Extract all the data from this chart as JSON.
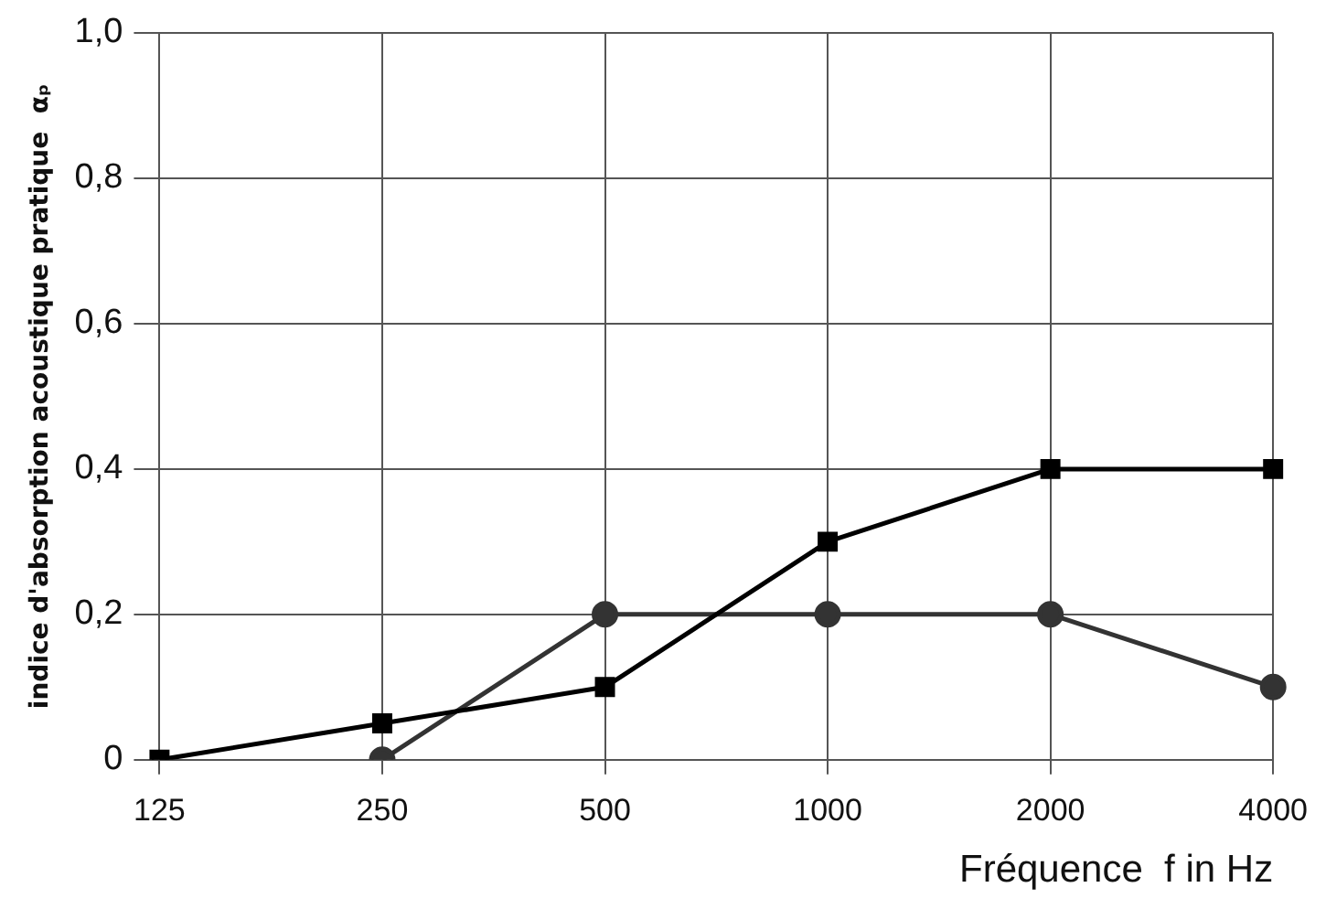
{
  "chart_data": {
    "type": "line",
    "xlabel": "Fréquence  f in Hz",
    "ylabel": "indice d'absorption acoustique pratique  αₚ",
    "categories": [
      "125",
      "250",
      "500",
      "1000",
      "2000",
      "4000"
    ],
    "series": [
      {
        "color": "#000000",
        "marker": "square",
        "values": [
          0,
          0.05,
          0.1,
          0.3,
          0.4,
          0.4
        ]
      },
      {
        "color": "#333333",
        "marker": "circle",
        "values": [
          null,
          0,
          0.2,
          0.2,
          0.2,
          0.1
        ]
      }
    ],
    "ylim": [
      0,
      1
    ],
    "yticks": [
      0,
      {
        "value": 0.2,
        "label": "0,2"
      },
      {
        "value": 0.4,
        "label": "0,4"
      },
      {
        "value": 0.6,
        "label": "0,6"
      },
      {
        "value": 0.8,
        "label": "0,8"
      },
      {
        "value": 1,
        "label": "1,0"
      }
    ],
    "grid": true,
    "legend": false,
    "line_style": "solid"
  }
}
